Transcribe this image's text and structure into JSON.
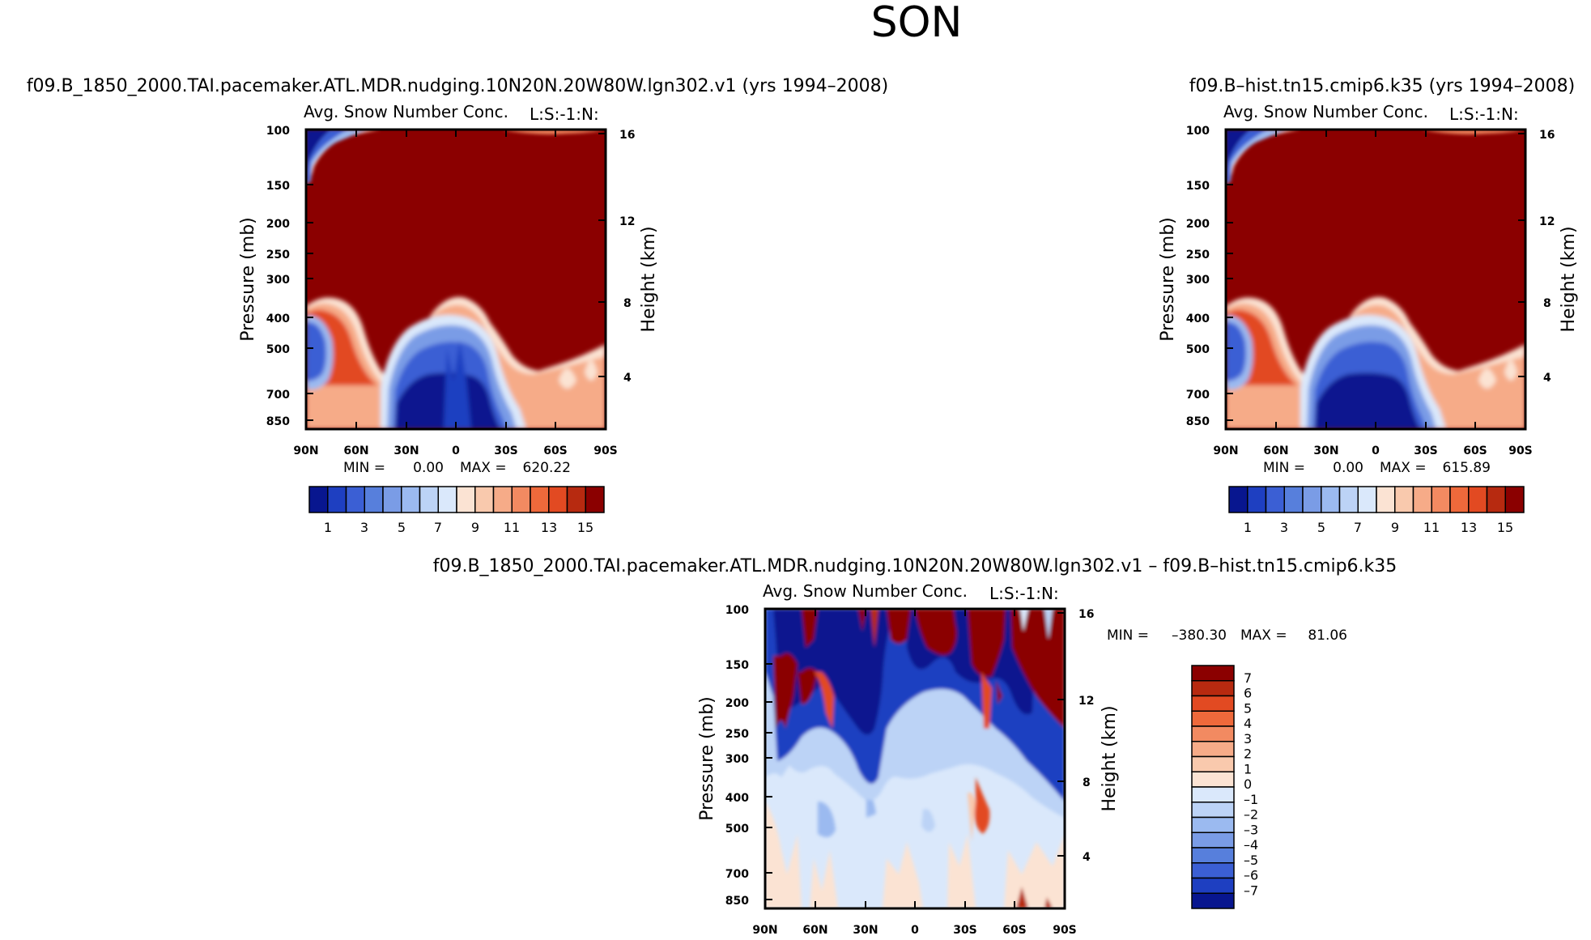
{
  "figure": {
    "title": "SON",
    "colors": {
      "pos": [
        "#fbe3d3",
        "#f9c9ad",
        "#f6ab88",
        "#f28a61",
        "#ee693b",
        "#e24a22",
        "#b72a10",
        "#8b0000"
      ],
      "neg": [
        "#dae8fb",
        "#bcd3f6",
        "#9bbaf0",
        "#7a9ce6",
        "#577fdc",
        "#3b5fd4",
        "#1e3fc1",
        "#08168f"
      ]
    }
  },
  "chart_data": [
    {
      "id": "panel1",
      "type": "heatmap",
      "title": "f09.B_1850_2000.TAI.pacemaker.ATL.MDR.nudging.10N20N.20W80W.lgn302.v1 (yrs 1994–2008)",
      "variable": "Avg. Snow Number Conc.",
      "label_right": "L:S:-1:N:",
      "xlabel": "",
      "ylabel": "Pressure (mb)",
      "ylabel_right": "Height (km)",
      "x_ticks": [
        "90N",
        "60N",
        "30N",
        "0",
        "30S",
        "60S",
        "90S"
      ],
      "y_ticks": [
        "100",
        "150",
        "200",
        "250",
        "300",
        "400",
        "500",
        "700",
        "850"
      ],
      "y_ticks_right": [
        "16",
        "12",
        "8",
        "4"
      ],
      "min_label": "MIN =",
      "min": "0.00",
      "max_label": "MAX =",
      "max": "620.22",
      "colorbar": {
        "levels": [
          1,
          2,
          3,
          4,
          5,
          6,
          7,
          8,
          9,
          10,
          11,
          12,
          13,
          14,
          15
        ],
        "labels": [
          "1",
          "3",
          "5",
          "7",
          "9",
          "11",
          "13",
          "15"
        ]
      }
    },
    {
      "id": "panel2",
      "type": "heatmap",
      "title": "f09.B–hist.tn15.cmip6.k35 (yrs 1994–2008)",
      "variable": "Avg. Snow Number Conc.",
      "label_right": "L:S:-1:N:",
      "xlabel": "",
      "ylabel": "Pressure (mb)",
      "ylabel_right": "Height (km)",
      "x_ticks": [
        "90N",
        "60N",
        "30N",
        "0",
        "30S",
        "60S",
        "90S"
      ],
      "y_ticks": [
        "100",
        "150",
        "200",
        "250",
        "300",
        "400",
        "500",
        "700",
        "850"
      ],
      "y_ticks_right": [
        "16",
        "12",
        "8",
        "4"
      ],
      "min_label": "MIN =",
      "min": "0.00",
      "max_label": "MAX =",
      "max": "615.89",
      "colorbar": {
        "levels": [
          1,
          2,
          3,
          4,
          5,
          6,
          7,
          8,
          9,
          10,
          11,
          12,
          13,
          14,
          15
        ],
        "labels": [
          "1",
          "3",
          "5",
          "7",
          "9",
          "11",
          "13",
          "15"
        ]
      }
    },
    {
      "id": "panel3",
      "type": "heatmap",
      "title": "f09.B_1850_2000.TAI.pacemaker.ATL.MDR.nudging.10N20N.20W80W.lgn302.v1 – f09.B–hist.tn15.cmip6.k35",
      "variable": "Avg. Snow Number Conc.",
      "label_right": "L:S:-1:N:",
      "xlabel": "",
      "ylabel": "Pressure (mb)",
      "ylabel_right": "Height (km)",
      "x_ticks": [
        "90N",
        "60N",
        "30N",
        "0",
        "30S",
        "60S",
        "90S"
      ],
      "y_ticks": [
        "100",
        "150",
        "200",
        "250",
        "300",
        "400",
        "500",
        "700",
        "850"
      ],
      "y_ticks_right": [
        "16",
        "12",
        "8",
        "4"
      ],
      "min_label": "MIN =",
      "min": "–380.30",
      "max_label": "MAX =",
      "max": "81.06",
      "colorbar": {
        "levels": [
          7,
          6,
          5,
          4,
          3,
          2,
          1,
          0,
          -1,
          -2,
          -3,
          -4,
          -5,
          -6,
          -7
        ],
        "labels": [
          "7",
          "6",
          "5",
          "4",
          "3",
          "2",
          "1",
          "0",
          "–1",
          "–2",
          "–3",
          "–4",
          "–5",
          "–6",
          "–7"
        ]
      }
    }
  ]
}
